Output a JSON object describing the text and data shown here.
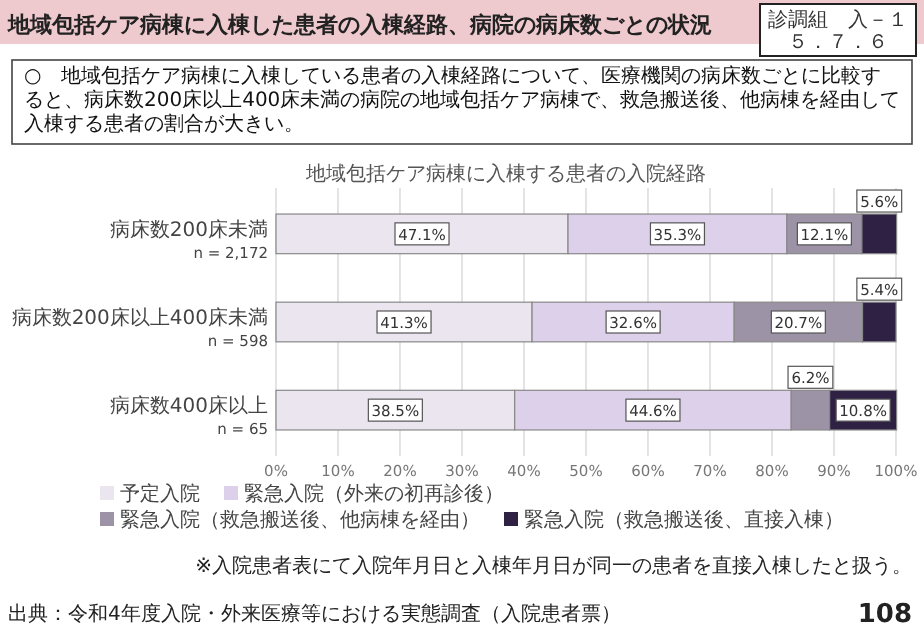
{
  "chart_data": {
    "type": "bar",
    "orientation": "horizontal",
    "stacked": true,
    "title": "地域包括ケア病棟に入棟した患者の入棟経路、病院の病床数ごとの状況",
    "subtitle": "地域包括ケア病棟に入棟する患者の入院経路",
    "categories": [
      "病床数200床未満\nn = 2,172",
      "病床数200床以上400床未満\nn = 598",
      "病床数400床以上\nn = 65"
    ],
    "series": [
      {
        "name": "予定入院",
        "color": "#ebe5f0",
        "values": [
          47.1,
          41.3,
          38.5
        ],
        "value_labels": [
          "47.1%",
          "41.3%",
          "38.5%"
        ]
      },
      {
        "name": "緊急入院（外来の初再診後）",
        "color": "#ddd0ea",
        "values": [
          35.3,
          32.6,
          44.6
        ],
        "value_labels": [
          "35.3%",
          "32.6%",
          "44.6%"
        ]
      },
      {
        "name": "緊急入院（救急搬送後、他病棟を経由）",
        "color": "#9d93a6",
        "values": [
          12.1,
          20.7,
          6.2
        ],
        "value_labels": [
          "12.1%",
          "20.7%",
          "6.2%"
        ]
      },
      {
        "name": "緊急入院（救急搬送後、直接入棟）",
        "color": "#2f2144",
        "values": [
          5.6,
          5.4,
          10.8
        ],
        "value_labels": [
          "5.6%",
          "5.4%",
          "10.8%"
        ]
      }
    ],
    "xlim": [
      0,
      100
    ],
    "xticks": [
      {
        "value": 0,
        "label": "0%"
      },
      {
        "value": 10,
        "label": "10%"
      },
      {
        "value": 20,
        "label": "20%"
      },
      {
        "value": 30,
        "label": "30%"
      },
      {
        "value": 40,
        "label": "40%"
      },
      {
        "value": 50,
        "label": "50%"
      },
      {
        "value": 60,
        "label": "60%"
      },
      {
        "value": 70,
        "label": "70%"
      },
      {
        "value": 80,
        "label": "80%"
      },
      {
        "value": 90,
        "label": "90%"
      },
      {
        "value": 100,
        "label": "100%"
      }
    ],
    "grid": "x",
    "legend": "bottom",
    "annotations": [
      "診調組　入－１５．７．６",
      "○　地域包括ケア病棟に入棟している患者の入棟経路について、医療機関の病床数ごとに比較すると、病床数200床以上400床未満の病院の地域包括ケア病棟で、救急搬送後、他病棟を経由して入棟する患者の割合が大きい。",
      "※入院患者表にて入院年月日と入棟年月日が同一の患者を直接入棟したと扱う。",
      "出典：令和4年度入院・外来医療等における実態調査（入院患者票）",
      "108"
    ]
  }
}
